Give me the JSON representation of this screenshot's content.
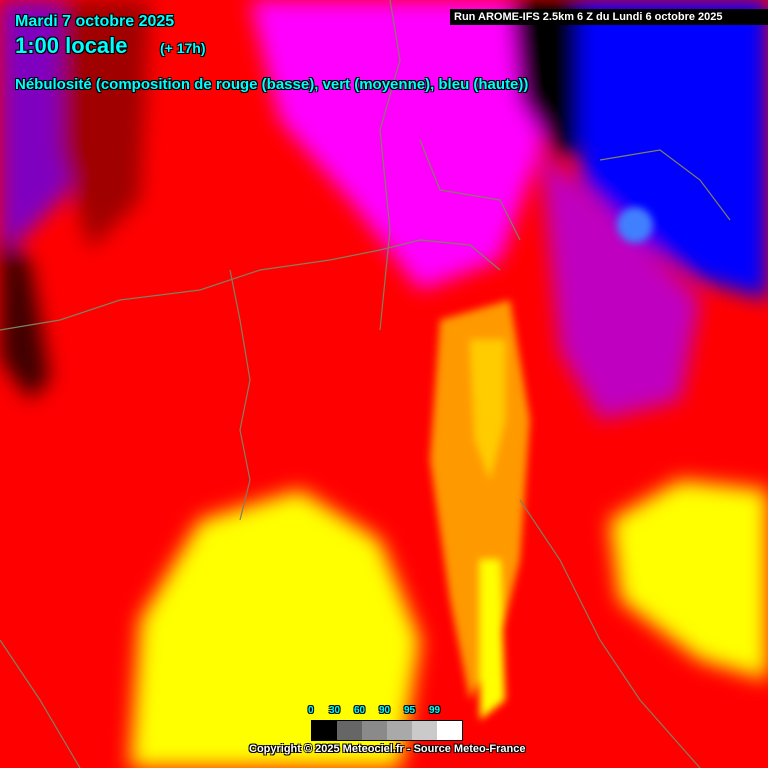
{
  "header": {
    "date": "Mardi 7 octobre 2025",
    "time": "1:00 locale",
    "lead": "(+ 17h)",
    "description": "Nébulosité (composition de rouge (basse), vert (moyenne), bleu (haute))",
    "run": "Run AROME-IFS 2.5km 6 Z du Lundi 6 octobre 2025"
  },
  "legend": {
    "labels": [
      "0",
      "30",
      "60",
      "90",
      "95",
      "99"
    ],
    "colors": [
      "#000000",
      "#666666",
      "#8a8a8a",
      "#a9a9a9",
      "#cacaca",
      "#ffffff"
    ]
  },
  "footer": {
    "copyright": "Copyright © 2025 Meteociel.fr - Source Meteo-France"
  },
  "colors": {
    "low": "#ff0000",
    "low_mid": "#ffff00",
    "low_high": "#ff00ff",
    "high": "#0000ff",
    "border": "#808060"
  }
}
